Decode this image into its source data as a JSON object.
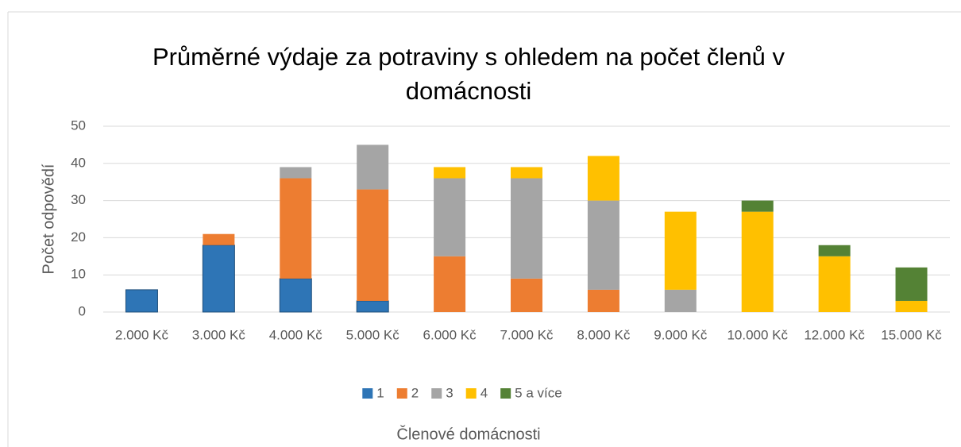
{
  "chart_data": {
    "type": "stacked_bar",
    "title": "Průměrné výdaje za potraviny s ohledem na počet členů v domácnosti",
    "ylabel": "Počet odpovědí",
    "xlabel": "Členové domácnosti",
    "categories": [
      "2.000 Kč",
      "3.000 Kč",
      "4.000 Kč",
      "5.000 Kč",
      "6.000 Kč",
      "7.000 Kč",
      "8.000 Kč",
      "9.000 Kč",
      "10.000 Kč",
      "12.000 Kč",
      "15.000 Kč"
    ],
    "series": [
      {
        "name": "1",
        "color": "#2e75b6",
        "values": [
          6,
          18,
          9,
          3,
          0,
          0,
          0,
          0,
          0,
          0,
          0
        ]
      },
      {
        "name": "2",
        "color": "#ed7d31",
        "values": [
          0,
          3,
          27,
          30,
          15,
          9,
          6,
          0,
          0,
          0,
          0
        ]
      },
      {
        "name": "3",
        "color": "#a5a5a5",
        "values": [
          0,
          0,
          3,
          12,
          21,
          27,
          24,
          6,
          0,
          0,
          0
        ]
      },
      {
        "name": "4",
        "color": "#ffc000",
        "values": [
          0,
          0,
          0,
          0,
          3,
          3,
          12,
          21,
          27,
          15,
          3
        ]
      },
      {
        "name": "5 a více",
        "color": "#548235",
        "values": [
          0,
          0,
          0,
          0,
          0,
          0,
          0,
          0,
          3,
          3,
          9
        ]
      }
    ],
    "ylim": [
      0,
      50
    ],
    "yticks": [
      0,
      10,
      20,
      30,
      40,
      50
    ],
    "grid": true,
    "legend": "bottom"
  }
}
